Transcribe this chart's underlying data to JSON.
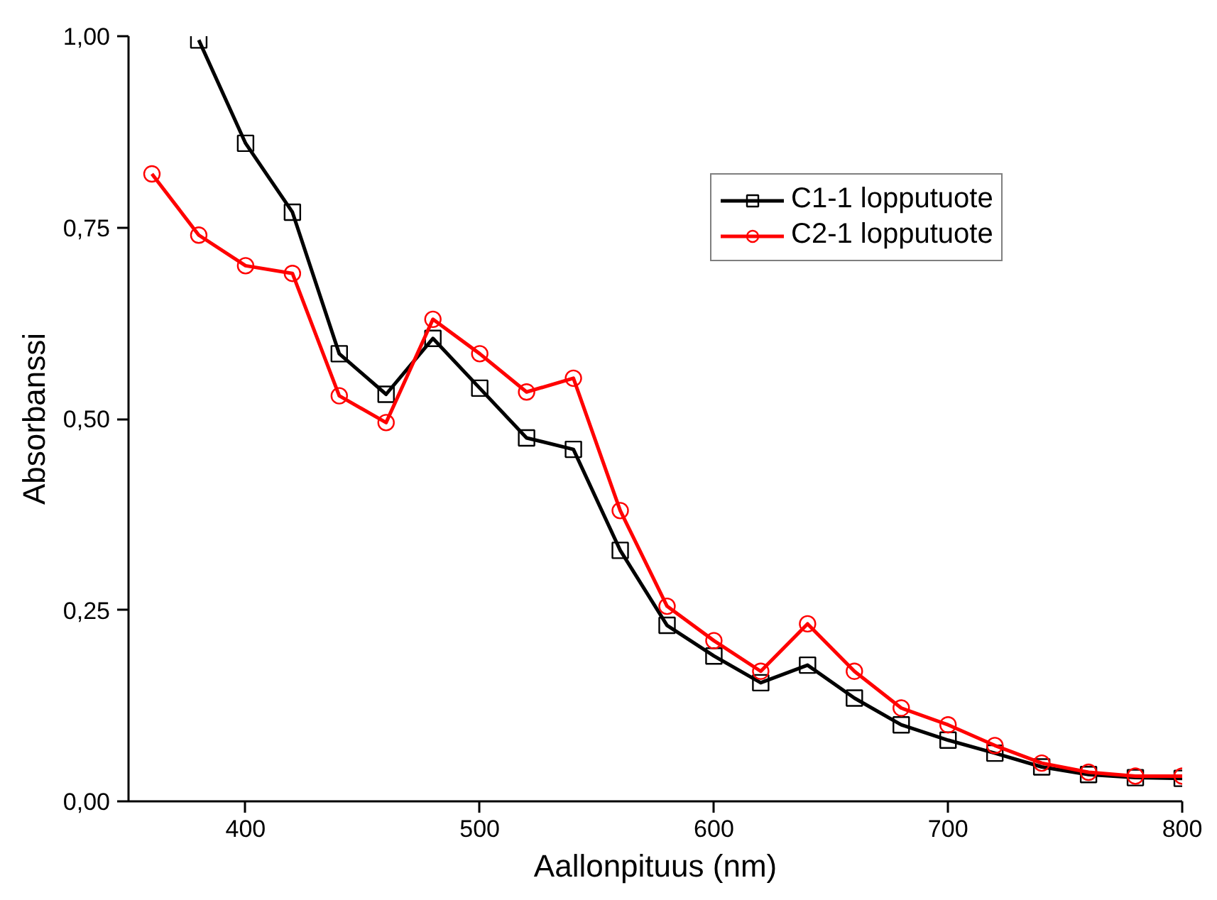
{
  "chart_data": {
    "type": "line",
    "xlabel": "Aallonpituus (nm)",
    "ylabel": "Absorbanssi",
    "xlim": [
      350,
      800
    ],
    "ylim": [
      0,
      1
    ],
    "xticks": [
      400,
      500,
      600,
      700,
      800
    ],
    "yticks": [
      {
        "value": 0,
        "label": "0,00"
      },
      {
        "value": 0.25,
        "label": "0,25"
      },
      {
        "value": 0.5,
        "label": "0,50"
      },
      {
        "value": 0.75,
        "label": "0,75"
      },
      {
        "value": 1,
        "label": "1,00"
      }
    ],
    "grid": false,
    "legend": "top right",
    "line_style": "solid",
    "series": [
      {
        "name": "C1-1 lopputuote",
        "color": "#000000",
        "marker": "square",
        "x": [
          380,
          400,
          420,
          440,
          460,
          480,
          500,
          520,
          540,
          560,
          580,
          600,
          620,
          640,
          660,
          680,
          700,
          720,
          740,
          760,
          780,
          800
        ],
        "values": [
          0.995,
          0.86,
          0.77,
          0.585,
          0.532,
          0.605,
          0.54,
          0.475,
          0.46,
          0.328,
          0.23,
          0.19,
          0.155,
          0.178,
          0.135,
          0.1,
          0.08,
          0.063,
          0.045,
          0.035,
          0.031,
          0.03
        ]
      },
      {
        "name": "C2-1 lopputuote",
        "color": "#ff0000",
        "marker": "circle",
        "x": [
          360,
          380,
          400,
          420,
          440,
          460,
          480,
          500,
          520,
          540,
          560,
          580,
          600,
          620,
          640,
          660,
          680,
          700,
          720,
          740,
          760,
          780,
          800
        ],
        "values": [
          0.82,
          0.74,
          0.7,
          0.69,
          0.53,
          0.495,
          0.63,
          0.585,
          0.535,
          0.553,
          0.38,
          0.255,
          0.21,
          0.17,
          0.232,
          0.17,
          0.122,
          0.1,
          0.073,
          0.05,
          0.038,
          0.033,
          0.033
        ]
      }
    ]
  }
}
